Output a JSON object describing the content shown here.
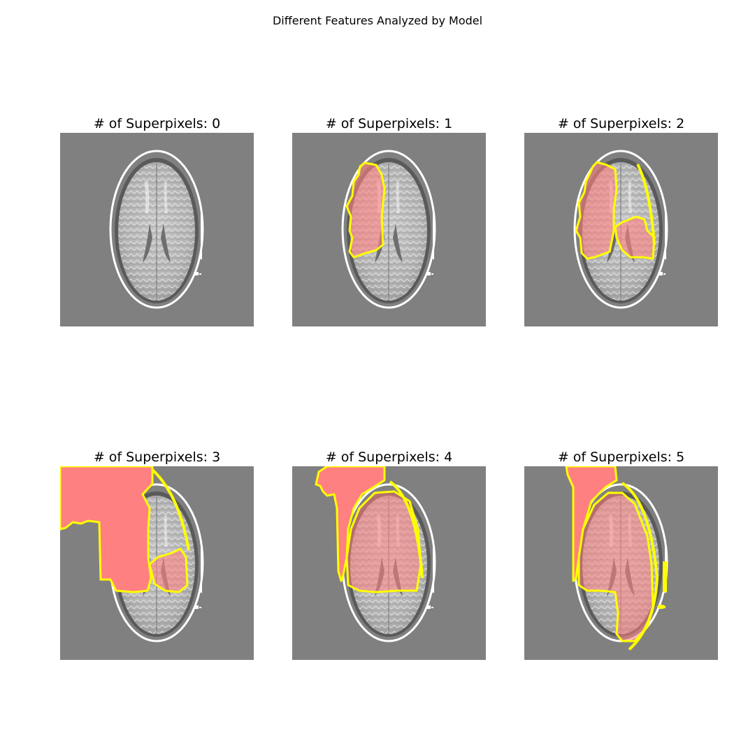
{
  "figure": {
    "title": "Different Features Analyzed by Model"
  },
  "panels": [
    {
      "title": "# of Superpixels: 0"
    },
    {
      "title": "# of Superpixels: 1"
    },
    {
      "title": "# of Superpixels: 2"
    },
    {
      "title": "# of Superpixels: 3"
    },
    {
      "title": "# of Superpixels: 4"
    },
    {
      "title": "# of Superpixels: 5"
    }
  ],
  "colors": {
    "background": "#808080",
    "mask": "#ff8080",
    "boundary": "#ffff00",
    "skull": "#ffffff"
  }
}
